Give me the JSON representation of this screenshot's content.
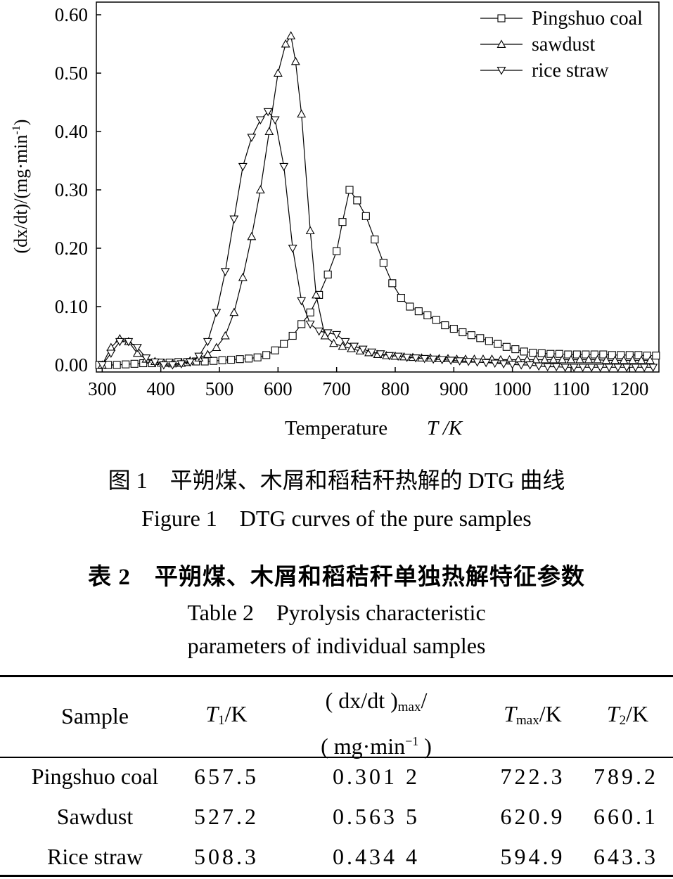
{
  "chart_data": {
    "type": "line",
    "xlabel": "Temperature",
    "xlabel_symbol": "T /K",
    "ylabel_prefix": "(dx/dt)/(mg·min",
    "ylabel_sup": "-1",
    "ylabel_suffix": ")",
    "xlim": [
      290,
      1250
    ],
    "ylim": [
      0.0,
      0.6
    ],
    "xticks": [
      300,
      400,
      500,
      600,
      700,
      800,
      900,
      1000,
      1100,
      1200
    ],
    "yticks": [
      "0.00",
      "0.10",
      "0.20",
      "0.30",
      "0.40",
      "0.50",
      "0.60"
    ],
    "legend_position": "top-right",
    "series": [
      {
        "name": "Pingshuo coal",
        "marker": "square",
        "x": [
          295,
          310,
          325,
          340,
          355,
          370,
          385,
          400,
          415,
          430,
          445,
          460,
          475,
          490,
          505,
          520,
          535,
          550,
          565,
          580,
          595,
          610,
          625,
          640,
          655,
          670,
          685,
          700,
          710,
          722,
          735,
          750,
          765,
          780,
          795,
          810,
          825,
          840,
          855,
          870,
          885,
          900,
          915,
          930,
          945,
          960,
          975,
          990,
          1005,
          1020,
          1035,
          1050,
          1065,
          1080,
          1095,
          1110,
          1125,
          1140,
          1155,
          1170,
          1185,
          1200,
          1215,
          1230,
          1245
        ],
        "y": [
          0.0,
          0.0,
          0.0,
          0.001,
          0.002,
          0.003,
          0.003,
          0.004,
          0.004,
          0.005,
          0.005,
          0.006,
          0.006,
          0.007,
          0.008,
          0.009,
          0.01,
          0.011,
          0.013,
          0.017,
          0.025,
          0.036,
          0.05,
          0.07,
          0.09,
          0.12,
          0.155,
          0.195,
          0.245,
          0.3,
          0.282,
          0.255,
          0.215,
          0.175,
          0.14,
          0.115,
          0.1,
          0.092,
          0.085,
          0.077,
          0.068,
          0.062,
          0.056,
          0.051,
          0.046,
          0.041,
          0.036,
          0.031,
          0.027,
          0.023,
          0.021,
          0.02,
          0.019,
          0.019,
          0.018,
          0.018,
          0.018,
          0.018,
          0.018,
          0.017,
          0.017,
          0.017,
          0.017,
          0.016,
          0.016
        ]
      },
      {
        "name": "sawdust",
        "marker": "triangle-up",
        "x": [
          300,
          315,
          330,
          345,
          360,
          375,
          390,
          405,
          420,
          435,
          450,
          465,
          480,
          495,
          510,
          525,
          540,
          555,
          570,
          585,
          600,
          613,
          622,
          630,
          640,
          655,
          665,
          680,
          695,
          710,
          725,
          740,
          755,
          770,
          785,
          800,
          815,
          830,
          845,
          860,
          875,
          890,
          905,
          920,
          935,
          950,
          965,
          980,
          995,
          1010,
          1025,
          1040,
          1055,
          1070,
          1085,
          1100,
          1115,
          1130,
          1145,
          1160,
          1175,
          1190,
          1205,
          1220,
          1235
        ],
        "y": [
          0.0,
          0.03,
          0.045,
          0.04,
          0.02,
          0.01,
          0.006,
          0.003,
          0.002,
          0.003,
          0.007,
          0.012,
          0.018,
          0.03,
          0.05,
          0.09,
          0.15,
          0.22,
          0.3,
          0.4,
          0.5,
          0.55,
          0.564,
          0.52,
          0.43,
          0.23,
          0.12,
          0.05,
          0.037,
          0.032,
          0.028,
          0.024,
          0.021,
          0.018,
          0.016,
          0.015,
          0.014,
          0.013,
          0.012,
          0.012,
          0.011,
          0.011,
          0.01,
          0.01,
          0.01,
          0.01,
          0.01,
          0.009,
          0.009,
          0.009,
          0.009,
          0.009,
          0.009,
          0.009,
          0.009,
          0.009,
          0.009,
          0.009,
          0.009,
          0.008,
          0.008,
          0.008,
          0.008,
          0.008,
          0.008
        ]
      },
      {
        "name": "rice straw",
        "marker": "triangle-down",
        "x": [
          300,
          315,
          330,
          345,
          360,
          375,
          390,
          405,
          420,
          435,
          450,
          465,
          480,
          495,
          510,
          525,
          540,
          555,
          570,
          583,
          595,
          610,
          625,
          640,
          655,
          670,
          685,
          700,
          715,
          730,
          745,
          760,
          775,
          790,
          805,
          820,
          835,
          850,
          865,
          880,
          895,
          910,
          925,
          940,
          955,
          970,
          985,
          1000,
          1015,
          1030,
          1045,
          1060,
          1075,
          1090,
          1105,
          1120,
          1135,
          1150,
          1165,
          1180,
          1195,
          1210,
          1225,
          1240
        ],
        "y": [
          0.0,
          0.02,
          0.04,
          0.04,
          0.03,
          0.012,
          0.005,
          0.0,
          0.0,
          0.002,
          0.005,
          0.015,
          0.04,
          0.09,
          0.16,
          0.25,
          0.34,
          0.39,
          0.42,
          0.434,
          0.42,
          0.34,
          0.2,
          0.11,
          0.07,
          0.058,
          0.055,
          0.052,
          0.04,
          0.032,
          0.027,
          0.022,
          0.019,
          0.016,
          0.015,
          0.013,
          0.012,
          0.011,
          0.01,
          0.009,
          0.008,
          0.007,
          0.006,
          0.005,
          0.004,
          0.003,
          0.002,
          0.001,
          0.0,
          0.0,
          -0.002,
          -0.003,
          -0.003,
          -0.004,
          -0.004,
          -0.004,
          -0.004,
          -0.004,
          -0.004,
          -0.004,
          -0.004,
          -0.004,
          -0.004,
          -0.004
        ]
      }
    ]
  },
  "figure_caption": {
    "cn": "图 1　平朔煤、木屑和稻秸秆热解的 DTG 曲线",
    "en": "Figure 1　DTG curves of the pure samples"
  },
  "table_caption": {
    "cn": "表 2　平朔煤、木屑和稻秸秆单独热解特征参数",
    "en_line1": "Table 2　Pyrolysis characteristic",
    "en_line2": "parameters of individual samples"
  },
  "table": {
    "headers": {
      "sample": "Sample",
      "t1": "T",
      "t1_sub": "1",
      "t1_unit": "/K",
      "rate_line1": "( dx/dt )",
      "rate_sub": "max",
      "rate_slash": "/",
      "rate_line2": "( mg·min",
      "rate_sup": "−1",
      "rate_close": " )",
      "tmax": "T",
      "tmax_sub": "max",
      "tmax_unit": "/K",
      "t2": "T",
      "t2_sub": "2",
      "t2_unit": "/K"
    },
    "rows": [
      {
        "sample": "Pingshuo coal",
        "t1": "657.5",
        "rate": "0.301 2",
        "tmax": "722.3",
        "t2": "789.2"
      },
      {
        "sample": "Sawdust",
        "t1": "527.2",
        "rate": "0.563 5",
        "tmax": "620.9",
        "t2": "660.1"
      },
      {
        "sample": "Rice straw",
        "t1": "508.3",
        "rate": "0.434 4",
        "tmax": "594.9",
        "t2": "643.3"
      }
    ]
  }
}
